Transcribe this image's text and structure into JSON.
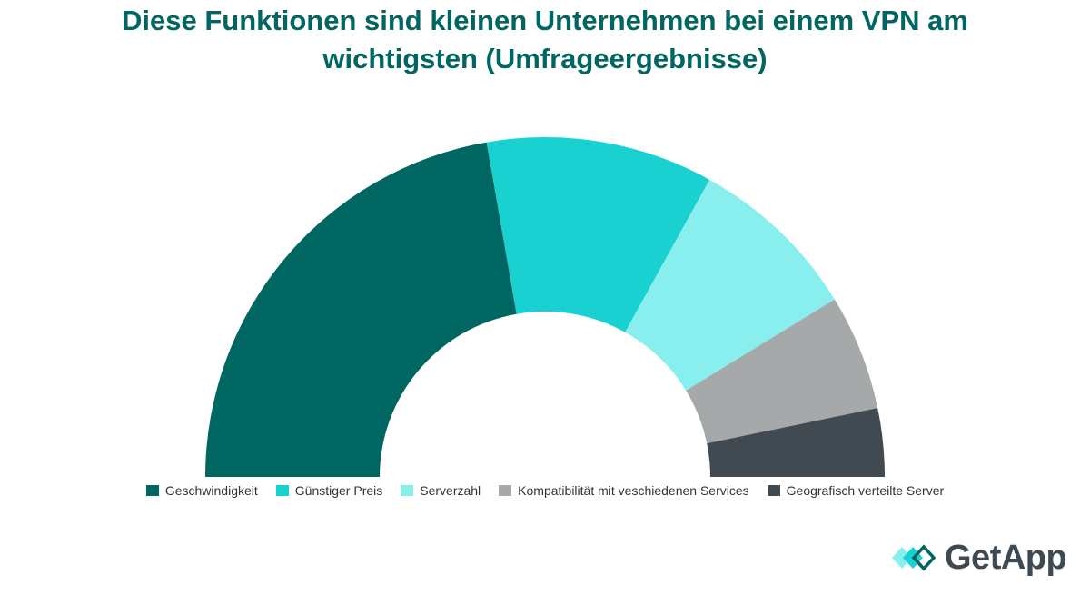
{
  "title_line1": "Diese Funktionen sind kleinen Unternehmen bei einem VPN am",
  "title_line2": "wichtigsten (Umfrageergebnisse)",
  "chart_data": {
    "type": "pie",
    "style": "half-donut",
    "title": "Diese Funktionen sind kleinen Unternehmen bei einem VPN am wichtigsten (Umfrageergebnisse)",
    "legend_position": "bottom",
    "series": [
      {
        "name": "Geschwindigkeit",
        "value": 44.5,
        "color": "#006661"
      },
      {
        "name": "Günstiger Preis",
        "value": 21.6,
        "color": "#1ad1d1"
      },
      {
        "name": "Serverzahl",
        "value": 16.4,
        "color": "#88eeee"
      },
      {
        "name": "Kompatibilität mit veschiedenen Services",
        "value": 11.0,
        "color": "#a6a9aa"
      },
      {
        "name": "Geografisch verteilte Server",
        "value": 6.5,
        "color": "#414951"
      }
    ]
  },
  "logo": {
    "text": "GetApp",
    "icon": "getapp-chevrons-icon",
    "colors": [
      "#1ad1d1",
      "#88eeee",
      "#006661"
    ]
  }
}
